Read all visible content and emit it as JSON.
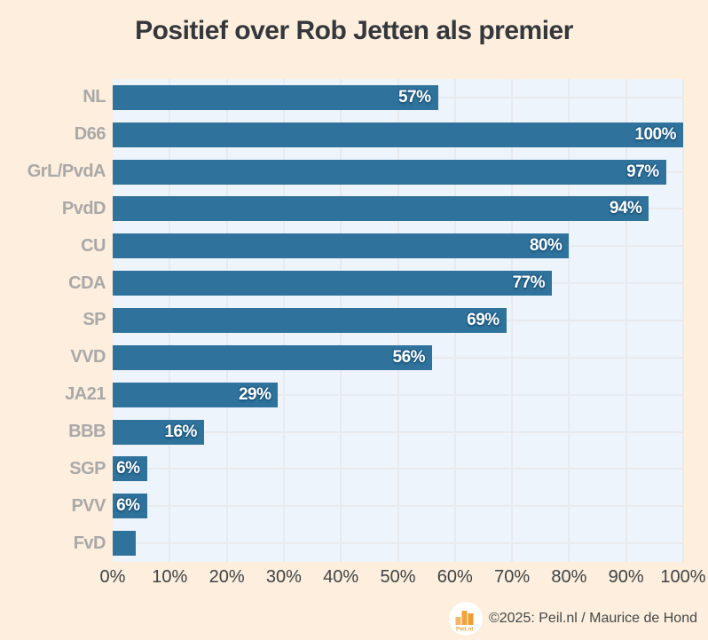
{
  "title": "Positief over Rob Jetten als premier",
  "footer": {
    "credit": "©2025: Peil.nl / Maurice de Hond",
    "logo_label": "Peil.nl"
  },
  "colors": {
    "background": "#fdeedd",
    "plot_background": "#eef4fb",
    "bar": "#2f739c",
    "gridline": "#e8eaee",
    "category_label": "#a9a9a9",
    "value_label": "#ffffff",
    "value_label_outline": "#1e5a84",
    "title_text": "#34373c",
    "tick_label": "#3e4347",
    "credit_text": "#43474b",
    "logo_orange": "#f0a43c"
  },
  "chart_data": {
    "type": "bar",
    "orientation": "horizontal",
    "title": "Positief over Rob Jetten als premier",
    "categories": [
      "NL",
      "D66",
      "GrL/PvdA",
      "PvdD",
      "CU",
      "CDA",
      "SP",
      "VVD",
      "JA21",
      "BBB",
      "SGP",
      "PVV",
      "FvD"
    ],
    "values": [
      57,
      100,
      97,
      94,
      80,
      77,
      69,
      56,
      29,
      16,
      6,
      6,
      4
    ],
    "bar_labels": [
      "57%",
      "100%",
      "97%",
      "94%",
      "80%",
      "77%",
      "69%",
      "56%",
      "29%",
      "16%",
      "6%",
      "6%",
      ""
    ],
    "xlabel": "",
    "ylabel": "",
    "xlim": [
      0,
      100
    ],
    "x_tick_values": [
      0,
      10,
      20,
      30,
      40,
      50,
      60,
      70,
      80,
      90,
      100
    ],
    "x_tick_labels": [
      "0%",
      "10%",
      "20%",
      "30%",
      "40%",
      "50%",
      "60%",
      "70%",
      "80%",
      "90%",
      "100%"
    ],
    "grid": "vertical lines every 10% and horizontal line at each category center",
    "legend_position": "none"
  }
}
